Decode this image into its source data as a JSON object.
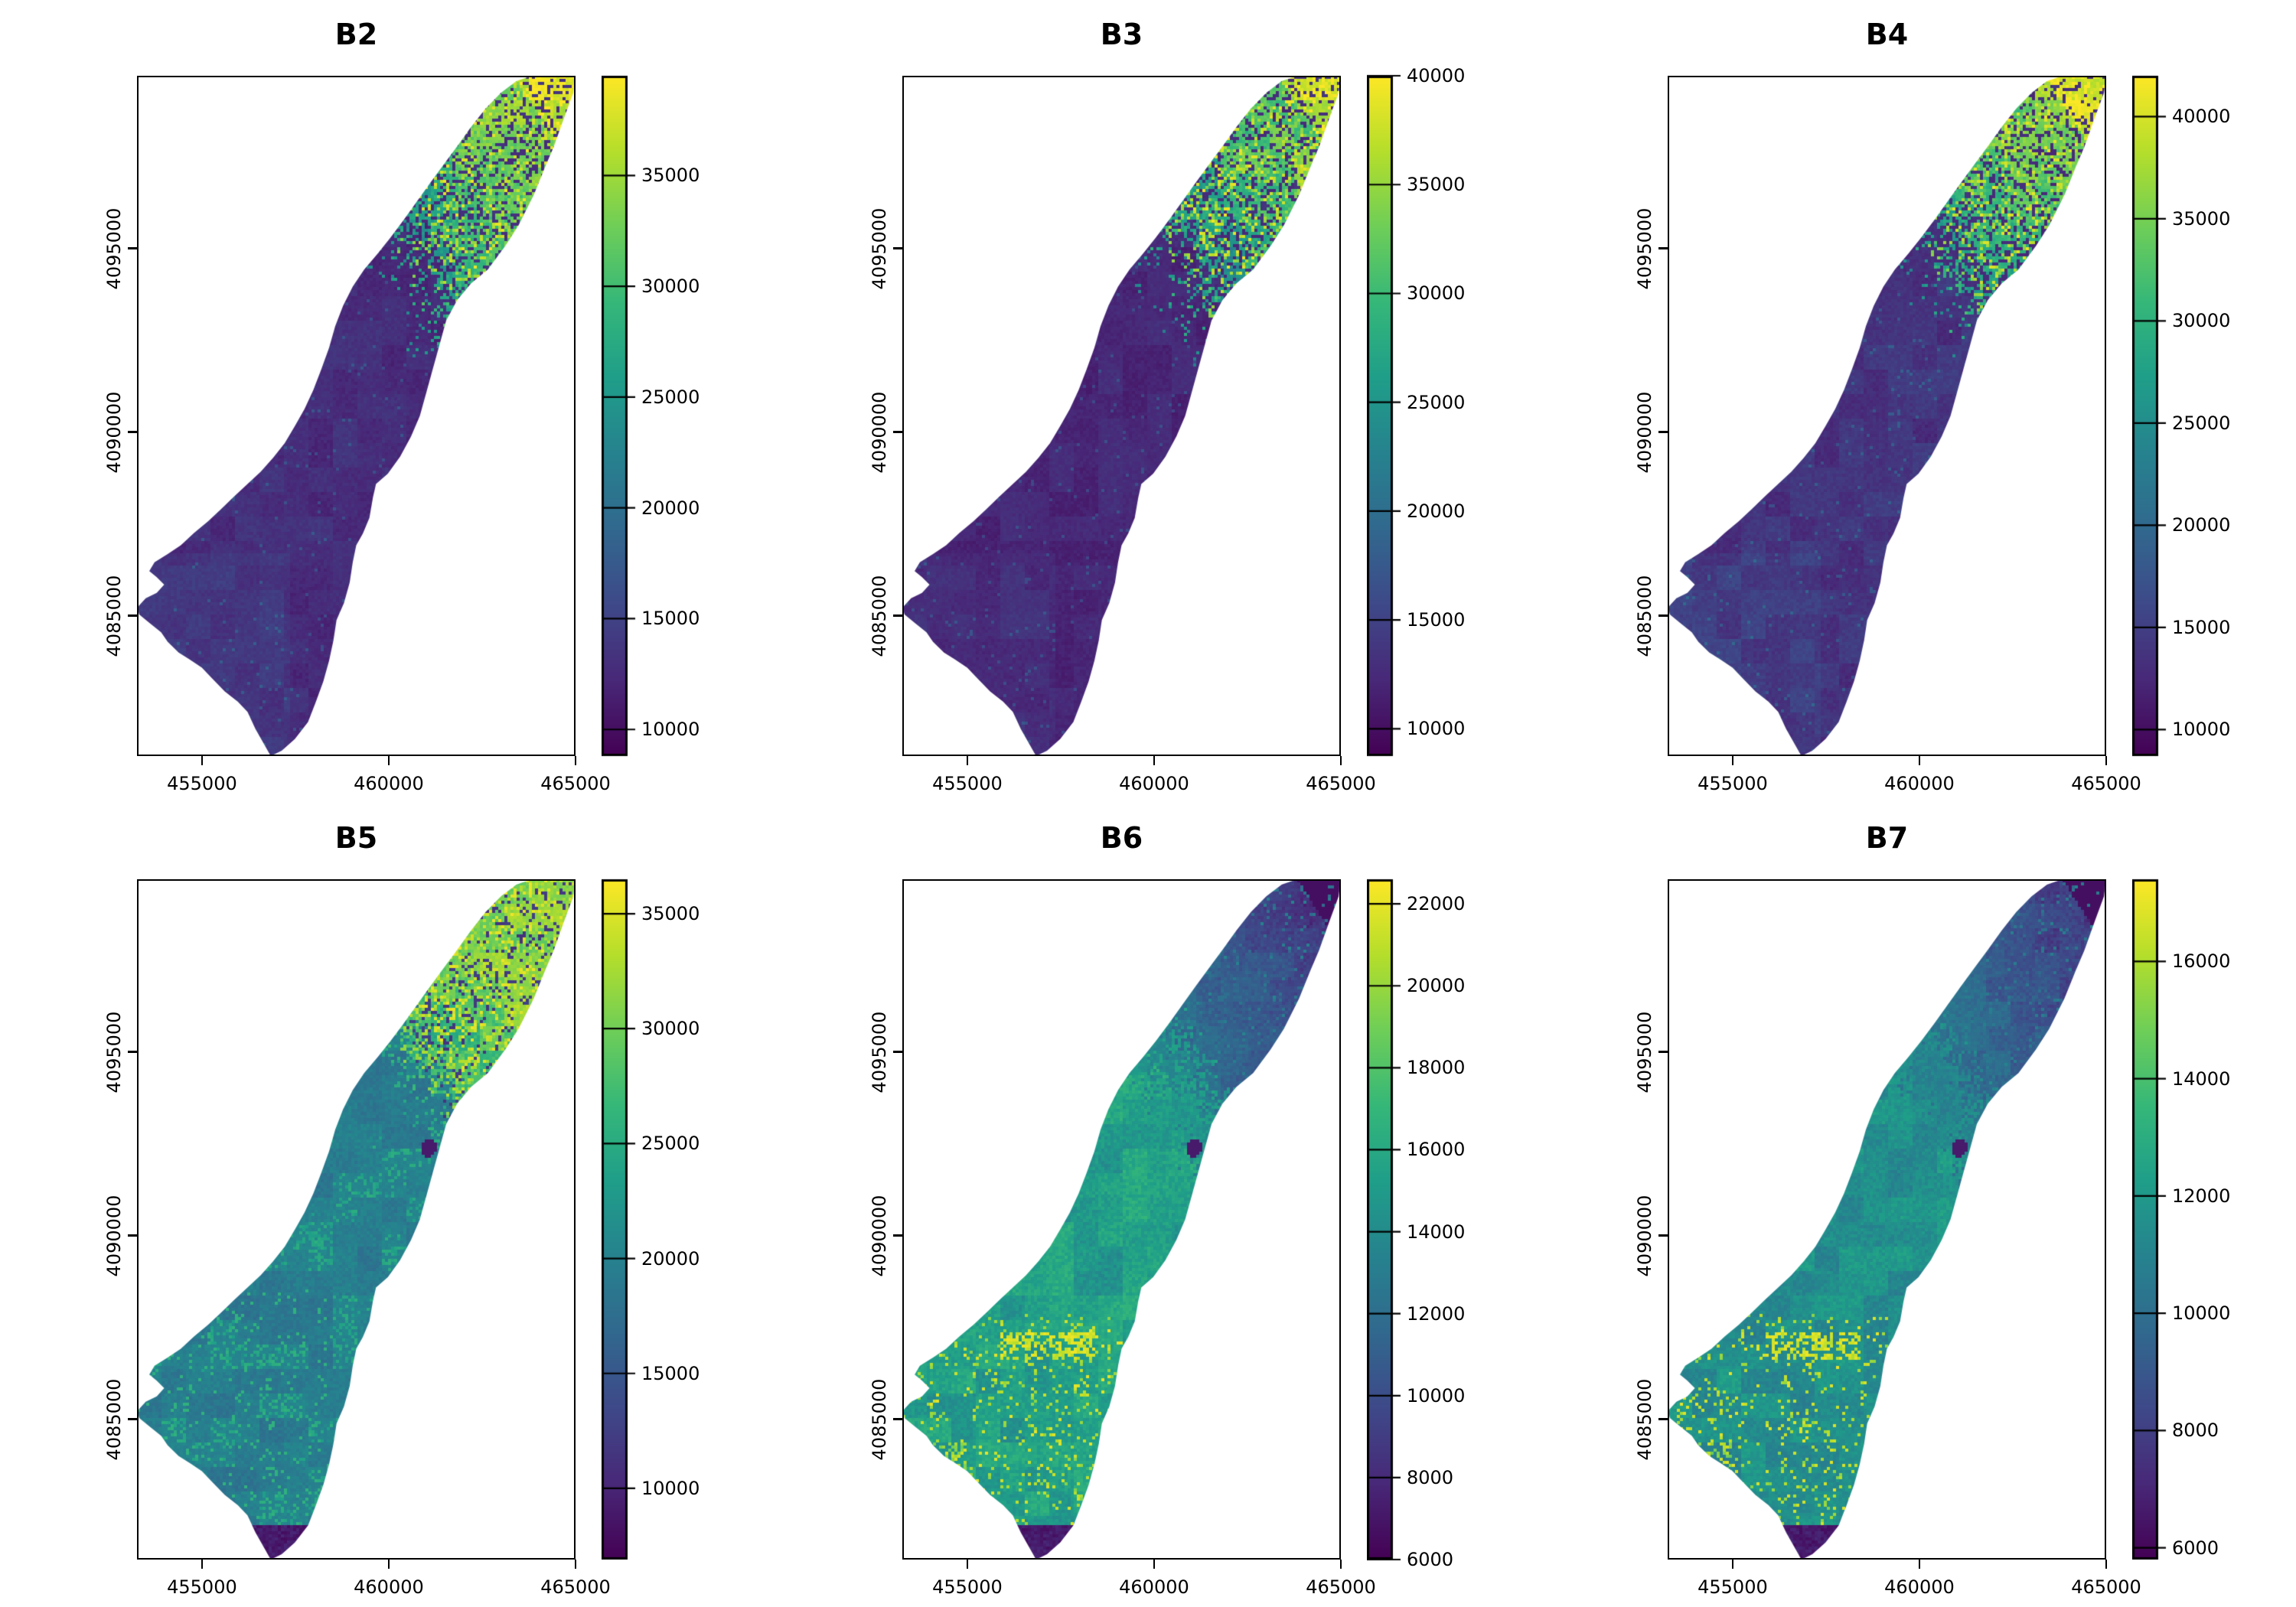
{
  "figure": {
    "background": "#ffffff",
    "rows": 2,
    "cols": 3,
    "description": "Six-panel raster map plot of satellite bands over a watershed, viridis palette, each panel with its own colorbar legend"
  },
  "palette": {
    "name": "viridis",
    "low": "#440154",
    "mid": "#21918c",
    "high": "#fde725"
  },
  "chart_data": [
    {
      "type": "heatmap",
      "title": "B2",
      "x_ticks": [
        "455000",
        "460000",
        "465000"
      ],
      "y_ticks": [
        "4095000",
        "4090000",
        "4085000"
      ],
      "x_range": [
        453260,
        465000
      ],
      "y_range": [
        4081180,
        4099700
      ],
      "grid": false,
      "legend": {
        "position": "right",
        "min": 8800,
        "max": 39500,
        "ticks": [
          "10000",
          "15000",
          "20000",
          "25000",
          "30000",
          "35000"
        ]
      },
      "pattern": {
        "style": "bright-ne-lobe",
        "body": 0.13,
        "bodyNoise": 0.1,
        "lobeBase": 0.38,
        "swLift": 0.03,
        "southTipDark": false,
        "darkSpot": false,
        "yellowSW": false
      }
    },
    {
      "type": "heatmap",
      "title": "B3",
      "x_ticks": [
        "455000",
        "460000",
        "465000"
      ],
      "y_ticks": [
        "4095000",
        "4090000",
        "4085000"
      ],
      "x_range": [
        453260,
        465000
      ],
      "y_range": [
        4081180,
        4099700
      ],
      "grid": false,
      "legend": {
        "position": "right",
        "min": 8750,
        "max": 40000,
        "ticks": [
          "10000",
          "15000",
          "20000",
          "25000",
          "30000",
          "35000",
          "40000"
        ]
      },
      "pattern": {
        "style": "bright-ne-lobe",
        "body": 0.11,
        "bodyNoise": 0.09,
        "lobeBase": 0.34,
        "swLift": 0.02,
        "southTipDark": false,
        "darkSpot": false,
        "yellowSW": false
      }
    },
    {
      "type": "heatmap",
      "title": "B4",
      "x_ticks": [
        "455000",
        "460000",
        "465000"
      ],
      "y_ticks": [
        "4095000",
        "4090000",
        "4085000"
      ],
      "x_range": [
        453260,
        465000
      ],
      "y_range": [
        4081180,
        4099700
      ],
      "grid": false,
      "legend": {
        "position": "right",
        "min": 8700,
        "max": 42000,
        "ticks": [
          "10000",
          "15000",
          "20000",
          "25000",
          "30000",
          "35000",
          "40000"
        ]
      },
      "pattern": {
        "style": "bright-ne-lobe",
        "body": 0.15,
        "bodyNoise": 0.12,
        "lobeBase": 0.4,
        "swLift": 0.03,
        "southTipDark": false,
        "darkSpot": false,
        "yellowSW": false
      }
    },
    {
      "type": "heatmap",
      "title": "B5",
      "x_ticks": [
        "455000",
        "460000",
        "465000"
      ],
      "y_ticks": [
        "4095000",
        "4090000",
        "4085000"
      ],
      "x_range": [
        453260,
        465000
      ],
      "y_range": [
        4081180,
        4099700
      ],
      "grid": false,
      "legend": {
        "position": "right",
        "min": 6900,
        "max": 36500,
        "ticks": [
          "10000",
          "15000",
          "20000",
          "25000",
          "30000",
          "35000"
        ]
      },
      "pattern": {
        "style": "teal-bright-lobe",
        "body": 0.43,
        "bodyNoise": 0.17,
        "lobeBase": 0.5,
        "swLift": 0.0,
        "southTipDark": true,
        "darkSpot": true,
        "yellowSW": false
      }
    },
    {
      "type": "heatmap",
      "title": "B6",
      "x_ticks": [
        "455000",
        "460000",
        "465000"
      ],
      "y_ticks": [
        "4095000",
        "4090000",
        "4085000"
      ],
      "x_range": [
        453260,
        465000
      ],
      "y_range": [
        4081180,
        4099700
      ],
      "grid": false,
      "legend": {
        "position": "right",
        "min": 6000,
        "max": 22600,
        "ticks": [
          "6000",
          "8000",
          "10000",
          "12000",
          "14000",
          "16000",
          "18000",
          "20000",
          "22000"
        ]
      },
      "pattern": {
        "style": "dark-ne-lobe",
        "body": 0.56,
        "bodyNoise": 0.22,
        "lobeBase": 0.12,
        "swLift": 0.0,
        "southTipDark": true,
        "darkSpot": true,
        "yellowSW": true
      }
    },
    {
      "type": "heatmap",
      "title": "B7",
      "x_ticks": [
        "455000",
        "460000",
        "465000"
      ],
      "y_ticks": [
        "4095000",
        "4090000",
        "4085000"
      ],
      "x_range": [
        453260,
        465000
      ],
      "y_range": [
        4081180,
        4099700
      ],
      "grid": false,
      "legend": {
        "position": "right",
        "min": 5800,
        "max": 17400,
        "ticks": [
          "6000",
          "8000",
          "10000",
          "12000",
          "14000",
          "16000"
        ]
      },
      "pattern": {
        "style": "dark-ne-lobe",
        "body": 0.5,
        "bodyNoise": 0.2,
        "lobeBase": 0.15,
        "swLift": 0.0,
        "southTipDark": true,
        "darkSpot": true,
        "yellowSW": true
      }
    }
  ]
}
